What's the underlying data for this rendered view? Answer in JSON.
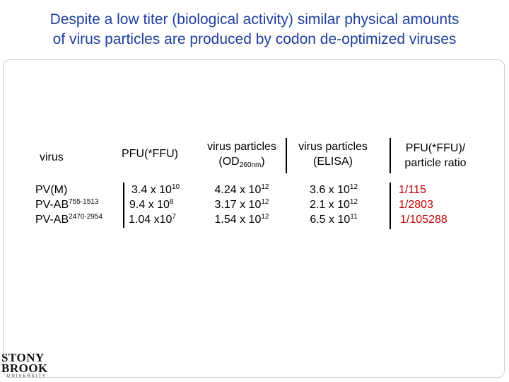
{
  "title": {
    "line1": "Despite a low titer (biological activity) similar physical amounts",
    "line2": "of virus particles are produced by codon de-optimized viruses"
  },
  "table": {
    "headers": {
      "virus": "virus",
      "pfu": "PFU(*FFU)",
      "vp_od_line1": "virus particles",
      "vp_od_line2_pre": "(OD",
      "vp_od_line2_sub": "260nm",
      "vp_od_line2_post": ")",
      "vp_elisa_line1": "virus particles",
      "vp_elisa_line2": "(ELISA)",
      "ratio_line1": "PFU(*FFU)/",
      "ratio_line2": "particle ratio"
    },
    "rows": [
      {
        "virus_base": "PV(M)",
        "virus_sup": "",
        "pfu_base": "3.4 x 10",
        "pfu_exp": "10",
        "od_base": "4.24 x 10",
        "od_exp": "12",
        "elisa_base": "3.6 x 10",
        "elisa_exp": "12",
        "ratio": "1/115"
      },
      {
        "virus_base": "PV-AB",
        "virus_sup": "755-1513",
        "pfu_base": "9.4 x 10",
        "pfu_exp": "8",
        "od_base": "3.17 x 10",
        "od_exp": "12",
        "elisa_base": "2.1 x 10",
        "elisa_exp": "12",
        "ratio": "1/2803"
      },
      {
        "virus_base": "PV-AB",
        "virus_sup": "2470-2954",
        "pfu_base": "1.04 x10",
        "pfu_exp": "7",
        "od_base": "1.54 x 10",
        "od_exp": "12",
        "elisa_base": "6.5 x 10",
        "elisa_exp": "11",
        "ratio": "1/105288"
      }
    ]
  },
  "logo": {
    "line1": "STONY",
    "line2": "BROOK",
    "line3": "UNIVERSITY"
  },
  "colors": {
    "title": "#1f3f9e",
    "ratio": "#c00000"
  }
}
